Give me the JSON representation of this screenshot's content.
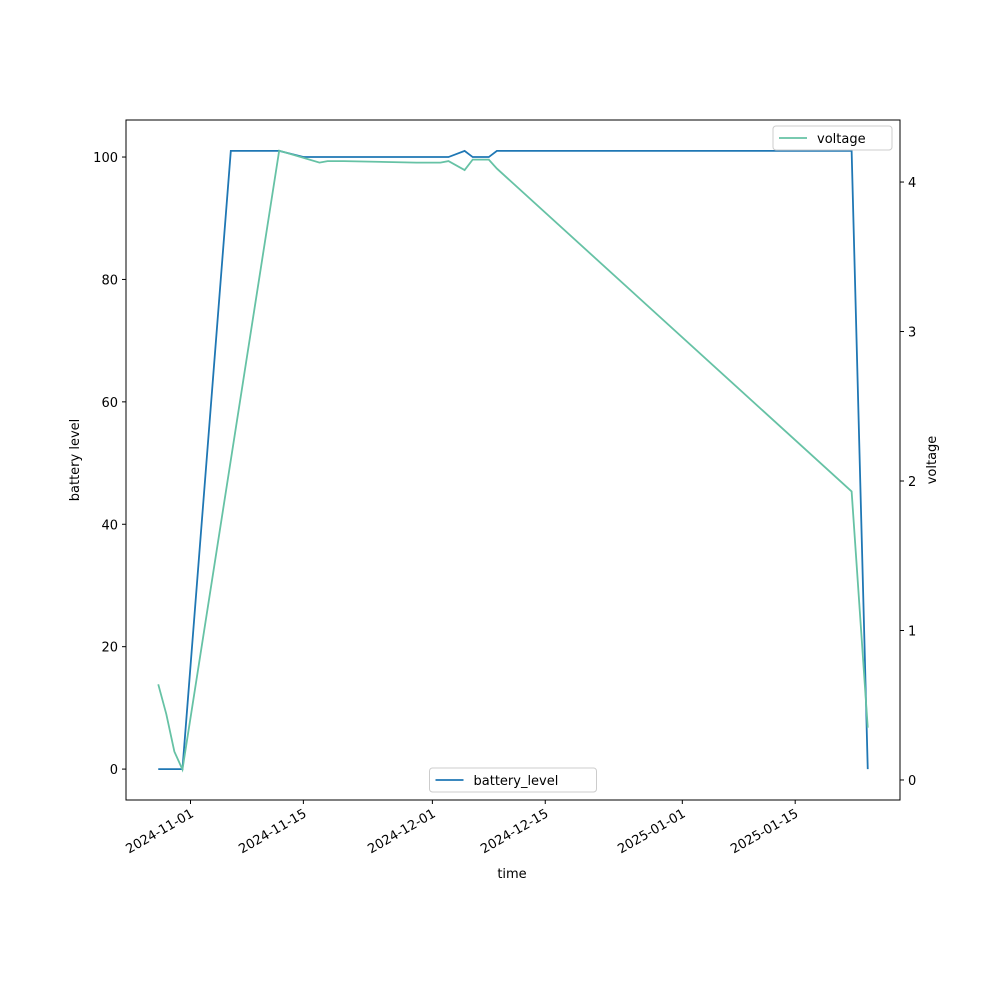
{
  "chart_data": {
    "type": "line",
    "xlabel": "time",
    "ylabel": "battery level",
    "y2label": "voltage",
    "xlim": [
      "2024-10-24",
      "2025-01-28"
    ],
    "xticks": [
      "2024-11-01",
      "2024-11-15",
      "2024-12-01",
      "2024-12-15",
      "2025-01-01",
      "2025-01-15"
    ],
    "ylim": [
      -5.05,
      106.05
    ],
    "yticks": [
      0,
      20,
      40,
      60,
      80,
      100
    ],
    "y2lim": [
      -0.134,
      4.415
    ],
    "y2ticks": [
      0,
      1,
      2,
      3,
      4
    ],
    "grid": false,
    "series": [
      {
        "name": "battery_level",
        "color": "#1f77b4",
        "legend": "lower center",
        "x": [
          "2024-10-28",
          "2024-10-31",
          "2024-11-06",
          "2024-11-12",
          "2024-11-15",
          "2024-12-03",
          "2024-12-05",
          "2024-12-06",
          "2024-12-08",
          "2024-12-09",
          "2025-01-22",
          "2025-01-24"
        ],
        "values": [
          0,
          0,
          101,
          101,
          100,
          100,
          101,
          100,
          100,
          101,
          101,
          0
        ]
      },
      {
        "name": "voltage",
        "color": "#66c2a5",
        "axis": "y2",
        "legend": "upper right",
        "x": [
          "2024-10-28",
          "2024-10-29",
          "2024-10-30",
          "2024-10-31",
          "2024-11-12",
          "2024-11-17",
          "2024-11-18",
          "2024-11-20",
          "2024-11-29",
          "2024-12-02",
          "2024-12-03",
          "2024-12-05",
          "2024-12-06",
          "2024-12-08",
          "2024-12-09",
          "2025-01-22",
          "2025-01-24"
        ],
        "values": [
          0.64,
          0.44,
          0.19,
          0.07,
          4.21,
          4.13,
          4.14,
          4.14,
          4.13,
          4.13,
          4.14,
          4.08,
          4.15,
          4.15,
          4.09,
          1.93,
          0.35
        ]
      }
    ]
  }
}
